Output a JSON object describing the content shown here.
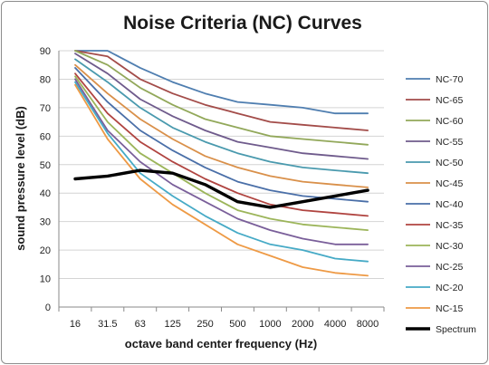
{
  "chart_data": {
    "type": "line",
    "title": "Noise Criteria (NC) Curves",
    "xlabel": "octave band center frequency (Hz)",
    "ylabel": "sound pressure level (dB)",
    "categories": [
      "16",
      "31.5",
      "63",
      "125",
      "250",
      "500",
      "1000",
      "2000",
      "4000",
      "8000"
    ],
    "ylim": [
      0,
      90
    ],
    "yticks": [
      "0",
      "10",
      "20",
      "30",
      "40",
      "50",
      "60",
      "70",
      "80",
      "90"
    ],
    "grid": true,
    "legend_position": "right",
    "series": [
      {
        "name": "NC-70",
        "color": "#4f7eb0",
        "values": [
          90,
          90,
          84,
          79,
          75,
          72,
          71,
          70,
          68,
          68
        ]
      },
      {
        "name": "NC-65",
        "color": "#a34c49",
        "values": [
          90,
          88,
          80,
          75,
          71,
          68,
          65,
          64,
          63,
          62
        ]
      },
      {
        "name": "NC-60",
        "color": "#92a85a",
        "values": [
          90,
          85,
          77,
          71,
          66,
          63,
          60,
          59,
          58,
          57
        ]
      },
      {
        "name": "NC-55",
        "color": "#6f5b8c",
        "values": [
          89,
          82,
          73,
          67,
          62,
          58,
          56,
          54,
          53,
          52
        ]
      },
      {
        "name": "NC-50",
        "color": "#4a9aae",
        "values": [
          87,
          79,
          70,
          63,
          58,
          54,
          51,
          49,
          48,
          47
        ]
      },
      {
        "name": "NC-45",
        "color": "#d9904a",
        "values": [
          85,
          75,
          66,
          59,
          53,
          49,
          46,
          44,
          43,
          42
        ]
      },
      {
        "name": "NC-40",
        "color": "#4a6fa8",
        "values": [
          84,
          72,
          62,
          55,
          49,
          44,
          41,
          39,
          38,
          37
        ]
      },
      {
        "name": "NC-35",
        "color": "#b04440",
        "values": [
          82,
          68,
          58,
          51,
          45,
          40,
          36,
          34,
          33,
          32
        ]
      },
      {
        "name": "NC-30",
        "color": "#9cb55a",
        "values": [
          81,
          65,
          54,
          47,
          40,
          34,
          31,
          29,
          28,
          27
        ]
      },
      {
        "name": "NC-25",
        "color": "#7a5f9a",
        "values": [
          80,
          62,
          51,
          43,
          37,
          31,
          27,
          24,
          22,
          22
        ]
      },
      {
        "name": "NC-20",
        "color": "#46aac6",
        "values": [
          79,
          61,
          47,
          39,
          32,
          26,
          22,
          20,
          17,
          16
        ]
      },
      {
        "name": "NC-15",
        "color": "#ee9a45",
        "values": [
          78,
          59,
          45,
          36,
          29,
          22,
          18,
          14,
          12,
          11
        ]
      },
      {
        "name": "Spectrum",
        "color": "#000000",
        "bold": true,
        "values": [
          45,
          46,
          48,
          47,
          43,
          37,
          35,
          37,
          39,
          41
        ]
      }
    ]
  }
}
